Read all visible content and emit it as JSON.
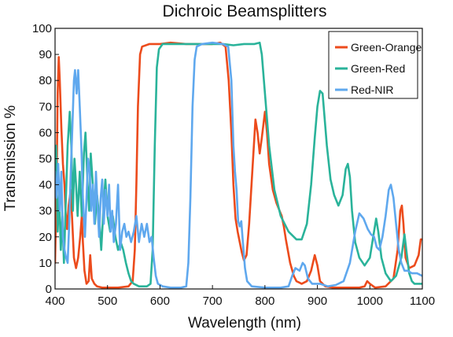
{
  "chart_data": {
    "type": "line",
    "title": "Dichroic Beamsplitters",
    "xlabel": "Wavelength (nm)",
    "ylabel": "Transmission %",
    "xlim": [
      400,
      1100
    ],
    "ylim": [
      0,
      100
    ],
    "xticks": [
      400,
      500,
      600,
      700,
      800,
      900,
      1000,
      1100
    ],
    "yticks": [
      0,
      10,
      20,
      30,
      40,
      50,
      60,
      70,
      80,
      90,
      100
    ],
    "grid": false,
    "legend_position": "top-right",
    "series": [
      {
        "name": "Green-Orange",
        "color": "#ec4b1c",
        "points": [
          [
            400,
            10
          ],
          [
            403,
            40
          ],
          [
            405,
            75
          ],
          [
            407,
            89
          ],
          [
            409,
            80
          ],
          [
            412,
            62
          ],
          [
            415,
            48
          ],
          [
            418,
            40
          ],
          [
            420,
            30
          ],
          [
            423,
            23
          ],
          [
            426,
            32
          ],
          [
            430,
            38
          ],
          [
            433,
            25
          ],
          [
            436,
            12
          ],
          [
            440,
            8
          ],
          [
            444,
            12
          ],
          [
            448,
            20
          ],
          [
            451,
            28
          ],
          [
            453,
            18
          ],
          [
            456,
            7
          ],
          [
            460,
            2
          ],
          [
            464,
            3
          ],
          [
            467,
            13
          ],
          [
            470,
            4
          ],
          [
            475,
            2
          ],
          [
            480,
            1
          ],
          [
            490,
            0.5
          ],
          [
            500,
            0.5
          ],
          [
            520,
            0.5
          ],
          [
            540,
            1
          ],
          [
            548,
            3
          ],
          [
            552,
            15
          ],
          [
            555,
            40
          ],
          [
            558,
            70
          ],
          [
            562,
            90
          ],
          [
            566,
            93
          ],
          [
            580,
            94
          ],
          [
            600,
            94
          ],
          [
            620,
            94.5
          ],
          [
            650,
            94
          ],
          [
            680,
            94
          ],
          [
            700,
            94
          ],
          [
            715,
            94.5
          ],
          [
            725,
            93
          ],
          [
            731,
            80
          ],
          [
            736,
            60
          ],
          [
            740,
            40
          ],
          [
            744,
            27
          ],
          [
            748,
            22
          ],
          [
            752,
            18
          ],
          [
            756,
            14
          ],
          [
            760,
            11
          ],
          [
            765,
            13
          ],
          [
            770,
            25
          ],
          [
            776,
            45
          ],
          [
            782,
            65
          ],
          [
            786,
            60
          ],
          [
            790,
            52
          ],
          [
            794,
            58
          ],
          [
            800,
            68
          ],
          [
            804,
            60
          ],
          [
            808,
            48
          ],
          [
            815,
            38
          ],
          [
            822,
            33
          ],
          [
            828,
            30
          ],
          [
            832,
            28
          ],
          [
            836,
            24
          ],
          [
            840,
            19
          ],
          [
            848,
            10
          ],
          [
            855,
            5
          ],
          [
            860,
            3
          ],
          [
            870,
            2
          ],
          [
            880,
            3
          ],
          [
            888,
            7
          ],
          [
            895,
            13
          ],
          [
            900,
            9
          ],
          [
            905,
            3
          ],
          [
            915,
            1
          ],
          [
            930,
            0.5
          ],
          [
            960,
            0.5
          ],
          [
            980,
            0.5
          ],
          [
            990,
            1
          ],
          [
            995,
            3
          ],
          [
            1000,
            2
          ],
          [
            1010,
            0.5
          ],
          [
            1030,
            1
          ],
          [
            1045,
            4
          ],
          [
            1053,
            15
          ],
          [
            1058,
            30
          ],
          [
            1061,
            32
          ],
          [
            1064,
            25
          ],
          [
            1068,
            12
          ],
          [
            1075,
            8
          ],
          [
            1085,
            9
          ],
          [
            1093,
            13
          ],
          [
            1097,
            19
          ],
          [
            1100,
            19
          ]
        ]
      },
      {
        "name": "Green-Red",
        "color": "#2ab39a",
        "points": [
          [
            400,
            40
          ],
          [
            402,
            55
          ],
          [
            405,
            22
          ],
          [
            408,
            36
          ],
          [
            411,
            15
          ],
          [
            414,
            28
          ],
          [
            417,
            10
          ],
          [
            420,
            30
          ],
          [
            424,
            55
          ],
          [
            428,
            68
          ],
          [
            431,
            55
          ],
          [
            434,
            30
          ],
          [
            437,
            50
          ],
          [
            440,
            40
          ],
          [
            443,
            28
          ],
          [
            447,
            45
          ],
          [
            451,
            28
          ],
          [
            455,
            52
          ],
          [
            458,
            60
          ],
          [
            462,
            40
          ],
          [
            465,
            30
          ],
          [
            468,
            52
          ],
          [
            472,
            40
          ],
          [
            476,
            25
          ],
          [
            480,
            36
          ],
          [
            484,
            28
          ],
          [
            488,
            15
          ],
          [
            492,
            30
          ],
          [
            496,
            42
          ],
          [
            500,
            28
          ],
          [
            505,
            22
          ],
          [
            510,
            28
          ],
          [
            515,
            20
          ],
          [
            520,
            15
          ],
          [
            525,
            18
          ],
          [
            530,
            15
          ],
          [
            535,
            10
          ],
          [
            540,
            6
          ],
          [
            545,
            3
          ],
          [
            550,
            2
          ],
          [
            560,
            1
          ],
          [
            575,
            1
          ],
          [
            582,
            2
          ],
          [
            586,
            15
          ],
          [
            590,
            55
          ],
          [
            594,
            85
          ],
          [
            598,
            92
          ],
          [
            605,
            94
          ],
          [
            620,
            94
          ],
          [
            650,
            94
          ],
          [
            680,
            94
          ],
          [
            700,
            94
          ],
          [
            720,
            94
          ],
          [
            740,
            93.5
          ],
          [
            760,
            94
          ],
          [
            780,
            94
          ],
          [
            790,
            94.5
          ],
          [
            794,
            90
          ],
          [
            800,
            75
          ],
          [
            808,
            55
          ],
          [
            818,
            38
          ],
          [
            830,
            28
          ],
          [
            845,
            22
          ],
          [
            860,
            19
          ],
          [
            870,
            19
          ],
          [
            880,
            25
          ],
          [
            888,
            40
          ],
          [
            895,
            58
          ],
          [
            900,
            70
          ],
          [
            905,
            76
          ],
          [
            910,
            75
          ],
          [
            918,
            55
          ],
          [
            925,
            42
          ],
          [
            932,
            36
          ],
          [
            940,
            32
          ],
          [
            948,
            36
          ],
          [
            954,
            46
          ],
          [
            958,
            48
          ],
          [
            962,
            43
          ],
          [
            966,
            30
          ],
          [
            972,
            18
          ],
          [
            980,
            12
          ],
          [
            990,
            9
          ],
          [
            1000,
            12
          ],
          [
            1008,
            22
          ],
          [
            1012,
            27
          ],
          [
            1016,
            22
          ],
          [
            1022,
            12
          ],
          [
            1030,
            6
          ],
          [
            1040,
            3
          ],
          [
            1050,
            5
          ],
          [
            1060,
            12
          ],
          [
            1066,
            21
          ],
          [
            1070,
            14
          ],
          [
            1075,
            6
          ],
          [
            1080,
            3
          ],
          [
            1085,
            2
          ],
          [
            1095,
            2
          ],
          [
            1100,
            2
          ]
        ]
      },
      {
        "name": "Red-NIR",
        "color": "#5fa8ee",
        "points": [
          [
            400,
            45
          ],
          [
            403,
            35
          ],
          [
            406,
            48
          ],
          [
            409,
            30
          ],
          [
            412,
            45
          ],
          [
            415,
            20
          ],
          [
            418,
            15
          ],
          [
            421,
            12
          ],
          [
            424,
            10
          ],
          [
            427,
            25
          ],
          [
            430,
            45
          ],
          [
            433,
            62
          ],
          [
            436,
            80
          ],
          [
            438,
            84
          ],
          [
            441,
            75
          ],
          [
            444,
            84
          ],
          [
            447,
            70
          ],
          [
            450,
            55
          ],
          [
            453,
            35
          ],
          [
            457,
            20
          ],
          [
            460,
            35
          ],
          [
            463,
            50
          ],
          [
            466,
            45
          ],
          [
            469,
            30
          ],
          [
            472,
            40
          ],
          [
            475,
            25
          ],
          [
            478,
            45
          ],
          [
            481,
            32
          ],
          [
            484,
            20
          ],
          [
            487,
            35
          ],
          [
            490,
            42
          ],
          [
            493,
            25
          ],
          [
            496,
            38
          ],
          [
            500,
            28
          ],
          [
            503,
            40
          ],
          [
            506,
            22
          ],
          [
            509,
            30
          ],
          [
            512,
            18
          ],
          [
            516,
            25
          ],
          [
            520,
            40
          ],
          [
            524,
            15
          ],
          [
            528,
            22
          ],
          [
            532,
            25
          ],
          [
            536,
            20
          ],
          [
            540,
            22
          ],
          [
            545,
            18
          ],
          [
            550,
            22
          ],
          [
            555,
            28
          ],
          [
            560,
            18
          ],
          [
            565,
            25
          ],
          [
            570,
            20
          ],
          [
            575,
            25
          ],
          [
            580,
            18
          ],
          [
            584,
            20
          ],
          [
            588,
            12
          ],
          [
            592,
            5
          ],
          [
            596,
            2
          ],
          [
            605,
            1
          ],
          [
            620,
            0.5
          ],
          [
            640,
            0.5
          ],
          [
            650,
            1
          ],
          [
            654,
            10
          ],
          [
            658,
            35
          ],
          [
            662,
            70
          ],
          [
            666,
            88
          ],
          [
            670,
            93
          ],
          [
            680,
            94
          ],
          [
            700,
            94.5
          ],
          [
            720,
            94
          ],
          [
            730,
            93
          ],
          [
            736,
            80
          ],
          [
            740,
            55
          ],
          [
            743,
            45
          ],
          [
            746,
            38
          ],
          [
            749,
            26
          ],
          [
            752,
            24
          ],
          [
            755,
            26
          ],
          [
            758,
            18
          ],
          [
            762,
            8
          ],
          [
            766,
            3
          ],
          [
            775,
            1
          ],
          [
            800,
            0.5
          ],
          [
            830,
            0.5
          ],
          [
            845,
            1
          ],
          [
            852,
            5
          ],
          [
            858,
            8
          ],
          [
            866,
            7
          ],
          [
            872,
            10
          ],
          [
            876,
            9
          ],
          [
            882,
            4
          ],
          [
            890,
            2
          ],
          [
            905,
            2
          ],
          [
            920,
            1
          ],
          [
            935,
            1.5
          ],
          [
            950,
            3
          ],
          [
            962,
            10
          ],
          [
            972,
            22
          ],
          [
            980,
            29
          ],
          [
            988,
            27
          ],
          [
            996,
            23
          ],
          [
            1002,
            21
          ],
          [
            1008,
            20
          ],
          [
            1013,
            16
          ],
          [
            1018,
            15
          ],
          [
            1024,
            20
          ],
          [
            1030,
            28
          ],
          [
            1036,
            38
          ],
          [
            1040,
            40
          ],
          [
            1045,
            35
          ],
          [
            1050,
            25
          ],
          [
            1055,
            15
          ],
          [
            1060,
            10
          ],
          [
            1066,
            7
          ],
          [
            1072,
            7
          ],
          [
            1080,
            6
          ],
          [
            1090,
            6
          ],
          [
            1100,
            5
          ]
        ]
      }
    ]
  }
}
